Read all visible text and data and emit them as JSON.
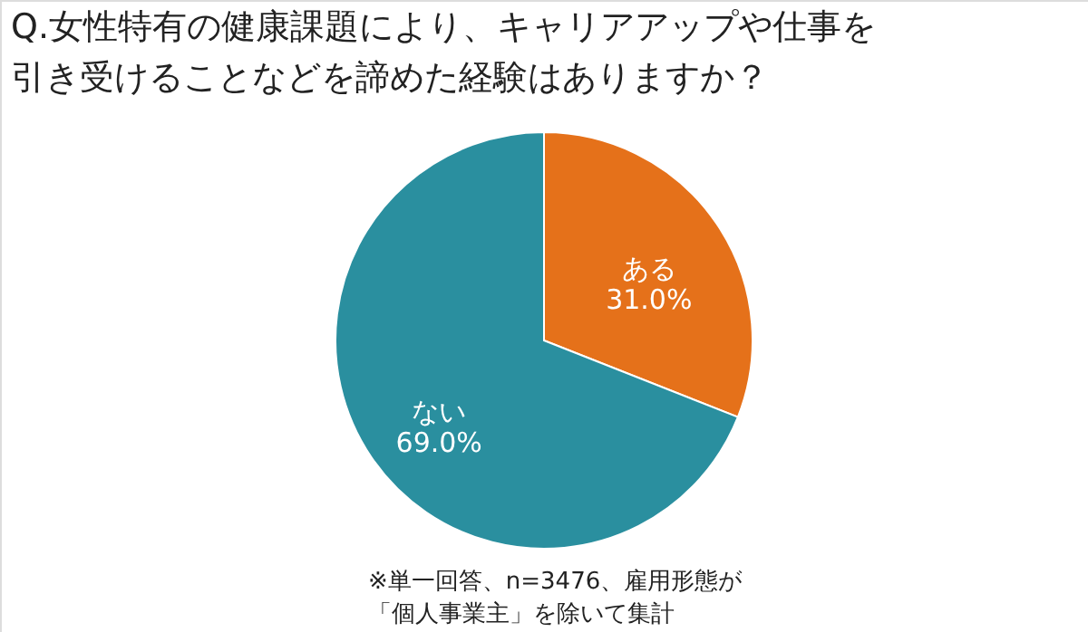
{
  "chart_data": {
    "type": "pie",
    "title": [
      "Q.女性特有の健康課題により、キャリアアップや仕事を",
      "引き受けることなどを諦めた経験はありますか？"
    ],
    "categories": [
      "ある",
      "ない"
    ],
    "values": [
      31.0,
      69.0
    ],
    "colors": [
      "#e5711a",
      "#2a8f9f"
    ],
    "value_labels": [
      "31.0%",
      "69.0%"
    ],
    "annotations": [
      "※単一回答、n=3476、雇用形態が",
      "「個人事業主」を除いて集計"
    ]
  }
}
